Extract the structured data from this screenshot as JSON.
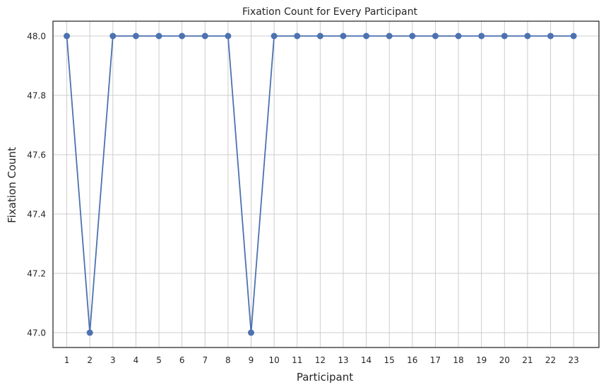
{
  "chart_data": {
    "type": "line",
    "title": "Fixation Count for Every Participant",
    "xlabel": "Participant",
    "ylabel": "Fixation Count",
    "x": [
      1,
      2,
      3,
      4,
      5,
      6,
      7,
      8,
      9,
      10,
      11,
      12,
      13,
      14,
      15,
      16,
      17,
      18,
      19,
      20,
      21,
      22,
      23
    ],
    "series": [
      {
        "values": [
          48,
          47,
          48,
          48,
          48,
          48,
          48,
          48,
          47,
          48,
          48,
          48,
          48,
          48,
          48,
          48,
          48,
          48,
          48,
          48,
          48,
          48,
          48
        ],
        "color": "#4c72b0",
        "marker": "circle"
      }
    ],
    "ylim": [
      46.95,
      48.05
    ],
    "xlim": [
      0.4,
      24.1
    ],
    "y_ticks": [
      47.0,
      47.2,
      47.4,
      47.6,
      47.8,
      48.0
    ],
    "y_tick_labels": [
      "47.0",
      "47.2",
      "47.4",
      "47.6",
      "47.8",
      "48.0"
    ],
    "x_ticks": [
      1,
      2,
      3,
      4,
      5,
      6,
      7,
      8,
      9,
      10,
      11,
      12,
      13,
      14,
      15,
      16,
      17,
      18,
      19,
      20,
      21,
      22,
      23
    ],
    "x_tick_labels": [
      "1",
      "2",
      "3",
      "4",
      "5",
      "6",
      "7",
      "8",
      "9",
      "10",
      "11",
      "12",
      "13",
      "14",
      "15",
      "16",
      "17",
      "18",
      "19",
      "20",
      "21",
      "22",
      "23"
    ],
    "grid": true,
    "grid_color": "#cccccc",
    "axes_color": "#262626",
    "legend": "none"
  }
}
